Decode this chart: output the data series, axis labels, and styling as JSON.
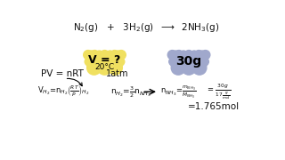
{
  "bg_color": "#ffffff",
  "text_color": "#111111",
  "yellow_cloud_color": "#f0e060",
  "blue_cloud_color": "#a0a8cc",
  "top_eq": "N$_2$(g)   +   3H$_2$(g)  $\\longrightarrow$  2NH$_3$(g)",
  "yellow_text1": "V = ?",
  "yellow_text2": "20°C",
  "blue_text": "30g",
  "atm_text": "1atm",
  "pv_text": "PV = nRT",
  "v_eq": "V$_{H_2}$=n$_{H_2}$$\\left(\\frac{RT}{P}\\right)_{H_2}$",
  "n_eq1": "n$_{H_2}$=$\\frac{3}{2}$n$_{NH_3}$",
  "n_eq2": "n$_{NH_3}$=$\\frac{m_{NH_3}}{M_{NH_3}}$",
  "eq3": "= $\\frac{30g}{17\\frac{g}{mol}}$",
  "result": "=1.765mol"
}
